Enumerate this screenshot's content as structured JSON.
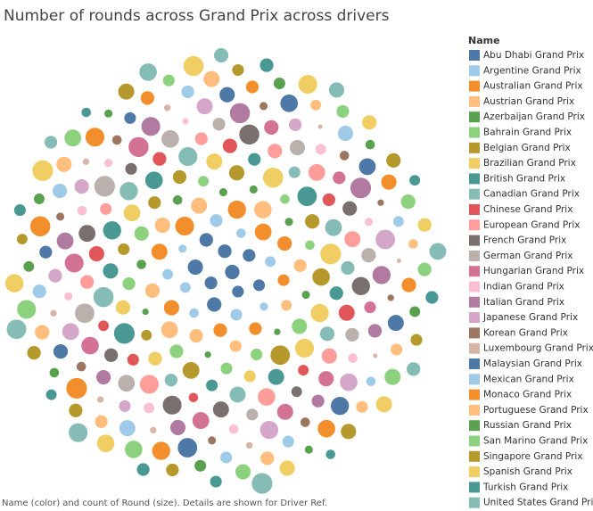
{
  "chart_data": {
    "type": "packed-bubble",
    "title": "Number of rounds across Grand Prix across drivers",
    "legend_title": "Name",
    "footer": "Name (color) and count of Round (size).  Details are shown for Driver Ref.",
    "series": [
      {
        "name": "Abu Dhabi Grand Prix",
        "color": "#4e79a7",
        "values": [
          9,
          7,
          8,
          6,
          10,
          7,
          9,
          8,
          6
        ]
      },
      {
        "name": "Argentine Grand Prix",
        "color": "#a0cbe8",
        "values": [
          5,
          4,
          6,
          3,
          5,
          4,
          7,
          3,
          5
        ]
      },
      {
        "name": "Australian Grand Prix",
        "color": "#f28e2b",
        "values": [
          12,
          8,
          15,
          6,
          10,
          14,
          7,
          11,
          9
        ]
      },
      {
        "name": "Austrian Grand Prix",
        "color": "#ffbe7d",
        "values": [
          8,
          11,
          5,
          9,
          13,
          6,
          10,
          7,
          12
        ]
      },
      {
        "name": "Azerbaijan Grand Prix",
        "color": "#59a14f",
        "values": [
          3,
          2,
          4,
          3,
          2,
          4,
          3,
          2,
          3
        ]
      },
      {
        "name": "Bahrain Grand Prix",
        "color": "#8cd17d",
        "values": [
          6,
          9,
          4,
          8,
          5,
          10,
          7,
          4,
          6
        ]
      },
      {
        "name": "Belgian Grand Prix",
        "color": "#b6992d",
        "values": [
          7,
          13,
          5,
          10,
          16,
          6,
          9,
          12,
          8
        ]
      },
      {
        "name": "Brazilian Grand Prix",
        "color": "#f1ce63",
        "values": [
          14,
          9,
          17,
          6,
          12,
          18,
          8,
          11,
          15
        ]
      },
      {
        "name": "British Grand Prix",
        "color": "#499894",
        "values": [
          10,
          16,
          6,
          13,
          8,
          18,
          7,
          11,
          14
        ]
      },
      {
        "name": "Canadian Grand Prix",
        "color": "#86bcb6",
        "values": [
          12,
          7,
          15,
          9,
          17,
          6,
          11,
          14,
          8
        ]
      },
      {
        "name": "Chinese Grand Prix",
        "color": "#e15759",
        "values": [
          6,
          9,
          5,
          10,
          7,
          4,
          8,
          11,
          5
        ]
      },
      {
        "name": "European Grand Prix",
        "color": "#ff9d9a",
        "values": [
          9,
          13,
          6,
          11,
          15,
          7,
          10,
          8,
          12
        ]
      },
      {
        "name": "French Grand Prix",
        "color": "#79706e",
        "values": [
          11,
          6,
          14,
          8,
          17,
          5,
          12,
          9,
          15
        ]
      },
      {
        "name": "German Grand Prix",
        "color": "#bab0ac",
        "values": [
          13,
          8,
          16,
          10,
          6,
          18,
          9,
          12,
          7
        ]
      },
      {
        "name": "Hungarian Grand Prix",
        "color": "#d37295",
        "values": [
          10,
          15,
          7,
          12,
          17,
          6,
          13,
          9,
          11
        ]
      },
      {
        "name": "Indian Grand Prix",
        "color": "#fabfd2",
        "values": [
          4,
          3,
          5,
          2,
          4,
          3,
          5,
          4,
          3
        ]
      },
      {
        "name": "Italian Grand Prix",
        "color": "#b07aa1",
        "values": [
          14,
          9,
          17,
          7,
          12,
          18,
          10,
          15,
          8
        ]
      },
      {
        "name": "Japanese Grand Prix",
        "color": "#d4a6c8",
        "values": [
          12,
          7,
          14,
          9,
          16,
          6,
          11,
          13,
          8
        ]
      },
      {
        "name": "Korean Grand Prix",
        "color": "#9d7660",
        "values": [
          4,
          3,
          4,
          2,
          4,
          3,
          4,
          3,
          2
        ]
      },
      {
        "name": "Luxembourg Grand Prix",
        "color": "#d7b5a6",
        "values": [
          2,
          2,
          1,
          2,
          1,
          2,
          2,
          1,
          2
        ]
      },
      {
        "name": "Malaysian Grand Prix",
        "color": "#4e79a7",
        "values": [
          10,
          14,
          7,
          12,
          16,
          6,
          11,
          9,
          13
        ]
      },
      {
        "name": "Mexican Grand Prix",
        "color": "#a0cbe8",
        "values": [
          6,
          9,
          5,
          11,
          7,
          4,
          8,
          10,
          6
        ]
      },
      {
        "name": "Monaco Grand Prix",
        "color": "#f28e2b",
        "values": [
          15,
          9,
          18,
          7,
          13,
          17,
          10,
          14,
          8
        ]
      },
      {
        "name": "Portuguese Grand Prix",
        "color": "#ffbe7d",
        "values": [
          6,
          9,
          5,
          8,
          10,
          4,
          7,
          11,
          6
        ]
      },
      {
        "name": "Russian Grand Prix",
        "color": "#59a14f",
        "values": [
          5,
          4,
          6,
          3,
          5,
          4,
          6,
          3,
          5
        ]
      },
      {
        "name": "San Marino Grand Prix",
        "color": "#8cd17d",
        "values": [
          9,
          13,
          6,
          11,
          15,
          7,
          10,
          12,
          8
        ]
      },
      {
        "name": "Singapore Grand Prix",
        "color": "#b6992d",
        "values": [
          8,
          6,
          10,
          5,
          9,
          7,
          11,
          6,
          8
        ]
      },
      {
        "name": "Spanish Grand Prix",
        "color": "#f1ce63",
        "values": [
          15,
          10,
          18,
          8,
          13,
          17,
          11,
          14,
          9
        ]
      },
      {
        "name": "Turkish Grand Prix",
        "color": "#499894",
        "values": [
          6,
          4,
          7,
          5,
          8,
          4,
          6,
          5,
          7
        ]
      },
      {
        "name": "United States Grand Prix",
        "color": "#86bcb6",
        "values": [
          13,
          8,
          16,
          10,
          18,
          7,
          12,
          15,
          9
        ]
      }
    ]
  }
}
